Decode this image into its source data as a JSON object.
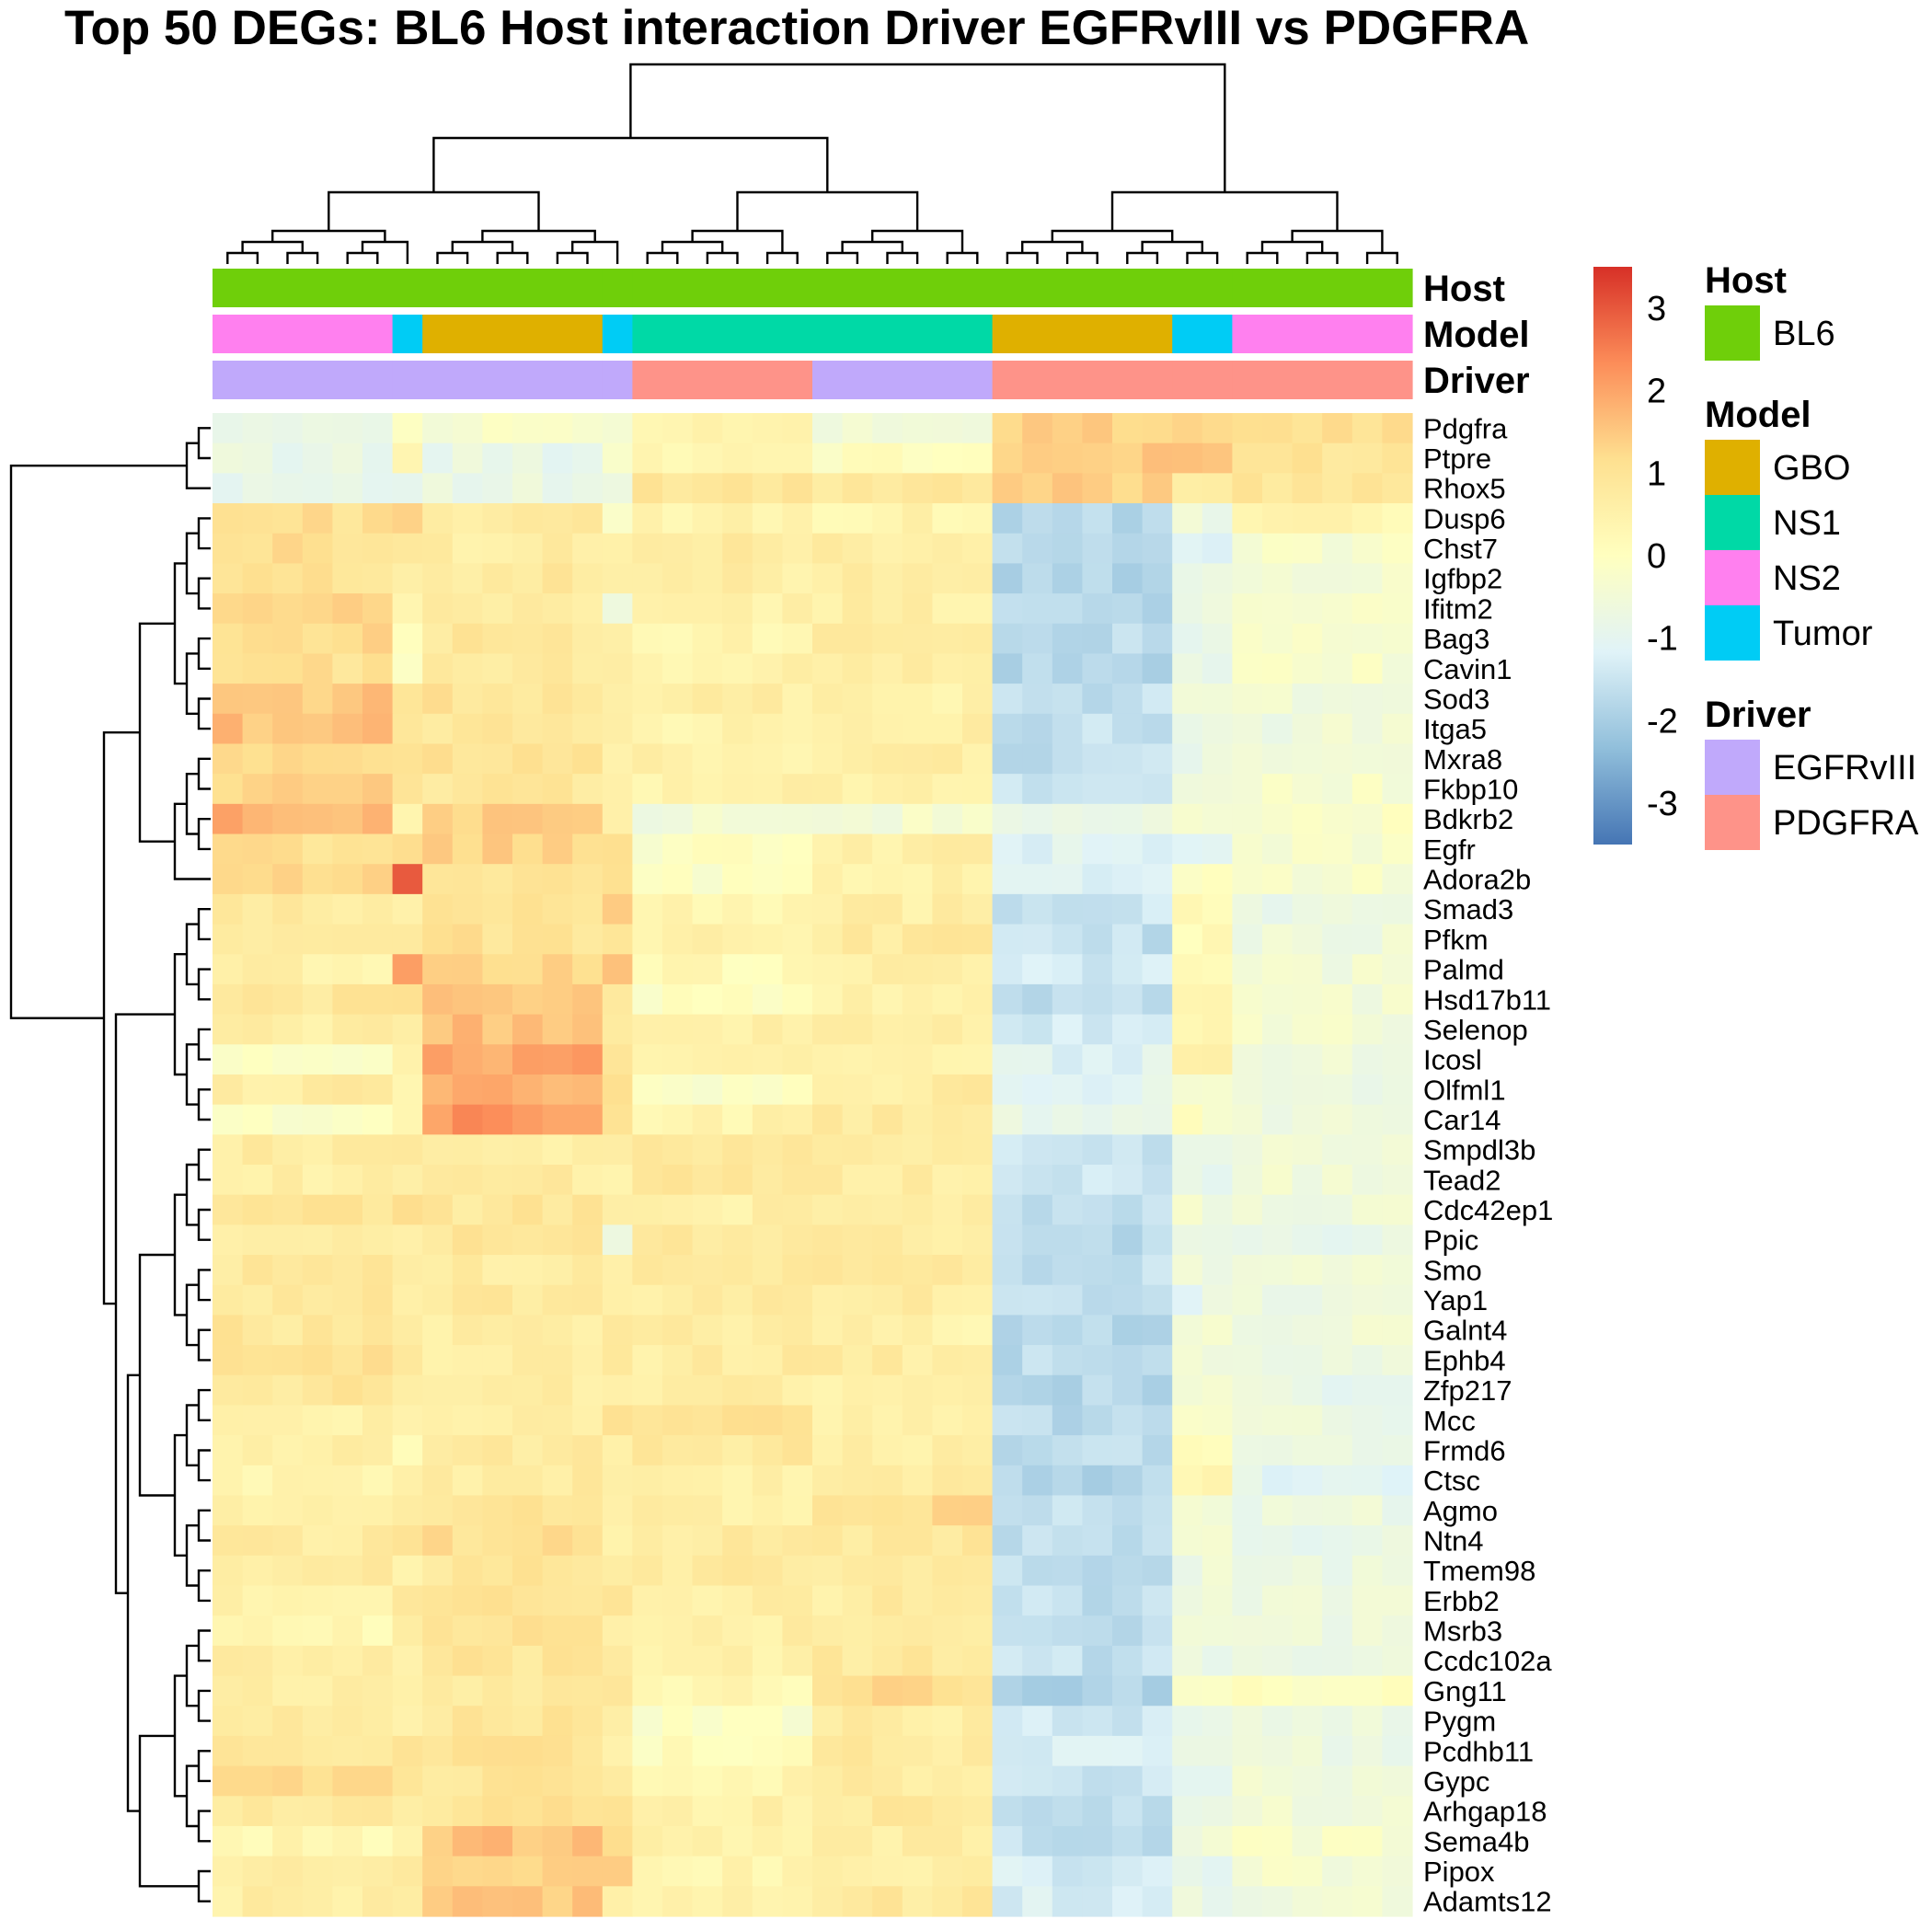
{
  "chart_data": {
    "type": "heatmap",
    "title": "Top 50 DEGs: BL6 Host interaction Driver EGFRvIII vs PDGFRA",
    "genes": [
      "Pdgfra",
      "Ptpre",
      "Rhox5",
      "Dusp6",
      "Chst7",
      "Igfbp2",
      "Ifitm2",
      "Bag3",
      "Cavin1",
      "Sod3",
      "Itga5",
      "Mxra8",
      "Fkbp10",
      "Bdkrb2",
      "Egfr",
      "Adora2b",
      "Smad3",
      "Pfkm",
      "Palmd",
      "Hsd17b11",
      "Selenop",
      "Icosl",
      "Olfml1",
      "Car14",
      "Smpdl3b",
      "Tead2",
      "Cdc42ep1",
      "Ppic",
      "Smo",
      "Yap1",
      "Galnt4",
      "Ephb4",
      "Zfp217",
      "Mcc",
      "Frmd6",
      "Ctsc",
      "Agmo",
      "Ntn4",
      "Tmem98",
      "Erbb2",
      "Msrb3",
      "Ccdc102a",
      "Gng11",
      "Pygm",
      "Pcdhb11",
      "Gypc",
      "Arhgap18",
      "Sema4b",
      "Pipox",
      "Adamts12"
    ],
    "column_groups": [
      {
        "host": "BL6",
        "model": "NS2",
        "driver": "EGFRvIII",
        "n": 6
      },
      {
        "host": "BL6",
        "model": "Tumor",
        "driver": "EGFRvIII",
        "n": 1
      },
      {
        "host": "BL6",
        "model": "GBO",
        "driver": "EGFRvIII",
        "n": 6
      },
      {
        "host": "BL6",
        "model": "Tumor",
        "driver": "EGFRvIII",
        "n": 1
      },
      {
        "host": "BL6",
        "model": "NS1",
        "driver": "PDGFRA",
        "n": 6
      },
      {
        "host": "BL6",
        "model": "NS1",
        "driver": "EGFRvIII",
        "n": 6
      },
      {
        "host": "BL6",
        "model": "GBO",
        "driver": "PDGFRA",
        "n": 6
      },
      {
        "host": "BL6",
        "model": "Tumor",
        "driver": "PDGFRA",
        "n": 2
      },
      {
        "host": "BL6",
        "model": "NS2",
        "driver": "PDGFRA",
        "n": 6
      }
    ],
    "block_means": [
      [
        -0.6,
        -0.3,
        -0.3,
        -0.3,
        0.3,
        -0.5,
        1.3,
        1.2,
        1.1
      ],
      [
        -0.8,
        0.2,
        -0.8,
        -0.3,
        0.4,
        0.0,
        1.4,
        1.5,
        1.0
      ],
      [
        -0.8,
        -0.7,
        -0.8,
        -0.9,
        0.9,
        0.8,
        1.4,
        0.8,
        1.0
      ],
      [
        1.1,
        1.6,
        0.7,
        -0.2,
        0.4,
        0.4,
        -1.8,
        -0.7,
        0.3
      ],
      [
        1.1,
        0.7,
        0.7,
        0.6,
        0.7,
        0.7,
        -1.8,
        -1.2,
        -0.3
      ],
      [
        1.0,
        0.8,
        0.8,
        0.6,
        0.6,
        0.8,
        -1.8,
        -0.9,
        -0.4
      ],
      [
        1.2,
        0.5,
        0.7,
        -0.5,
        0.5,
        0.6,
        -1.7,
        -0.7,
        -0.4
      ],
      [
        1.2,
        0.2,
        0.9,
        0.8,
        0.4,
        0.9,
        -1.7,
        -0.8,
        -0.4
      ],
      [
        1.1,
        -0.2,
        0.7,
        0.7,
        0.5,
        0.7,
        -1.8,
        -0.9,
        -0.3
      ],
      [
        1.5,
        1.0,
        1.0,
        0.8,
        0.6,
        0.5,
        -1.6,
        -0.5,
        -0.5
      ],
      [
        1.6,
        0.8,
        0.9,
        0.8,
        0.4,
        0.7,
        -1.6,
        -0.8,
        -0.6
      ],
      [
        1.1,
        0.9,
        1.0,
        0.7,
        0.5,
        0.6,
        -1.6,
        -0.7,
        -0.5
      ],
      [
        1.3,
        0.9,
        0.9,
        0.7,
        0.5,
        0.6,
        -1.6,
        -0.5,
        -0.3
      ],
      [
        1.8,
        0.2,
        1.4,
        0.7,
        -0.5,
        -0.4,
        -0.8,
        -0.5,
        -0.2
      ],
      [
        1.1,
        1.2,
        1.3,
        1.1,
        -0.1,
        0.6,
        -1.1,
        -0.9,
        -0.3
      ],
      [
        1.3,
        2.8,
        0.9,
        0.9,
        -0.2,
        0.5,
        -1.1,
        0.0,
        -0.3
      ],
      [
        0.7,
        0.6,
        1.0,
        1.6,
        0.4,
        0.6,
        -1.5,
        0.2,
        -0.8
      ],
      [
        0.8,
        0.6,
        1.0,
        1.0,
        0.5,
        0.8,
        -1.6,
        0.2,
        -0.6
      ],
      [
        0.5,
        2.0,
        1.3,
        1.5,
        0.2,
        0.6,
        -1.4,
        0.1,
        -0.5
      ],
      [
        0.9,
        0.9,
        1.4,
        1.0,
        0.0,
        0.5,
        -1.6,
        0.3,
        -0.5
      ],
      [
        0.6,
        0.6,
        1.6,
        1.0,
        0.5,
        0.7,
        -1.4,
        0.4,
        -0.4
      ],
      [
        -0.2,
        0.3,
        2.0,
        0.9,
        0.4,
        0.5,
        -1.1,
        0.6,
        -0.6
      ],
      [
        0.7,
        0.5,
        1.9,
        1.0,
        -0.2,
        0.7,
        -1.0,
        -0.3,
        -0.6
      ],
      [
        -0.1,
        0.5,
        2.2,
        1.0,
        0.4,
        0.7,
        -0.9,
        -0.1,
        -0.7
      ],
      [
        0.7,
        0.8,
        0.6,
        0.6,
        0.9,
        0.7,
        -1.5,
        -0.7,
        -0.6
      ],
      [
        0.6,
        0.8,
        0.7,
        0.6,
        0.9,
        0.7,
        -1.5,
        -0.9,
        -0.5
      ],
      [
        0.9,
        1.0,
        0.9,
        0.7,
        0.6,
        0.6,
        -1.6,
        -0.5,
        -0.6
      ],
      [
        0.8,
        0.4,
        0.9,
        -0.5,
        0.8,
        0.7,
        -1.7,
        -0.9,
        -0.8
      ],
      [
        0.8,
        0.5,
        0.7,
        0.6,
        0.8,
        0.8,
        -1.6,
        -0.7,
        -0.6
      ],
      [
        0.8,
        0.7,
        0.8,
        0.8,
        0.7,
        0.7,
        -1.7,
        -0.9,
        -0.6
      ],
      [
        0.9,
        0.8,
        0.7,
        0.7,
        0.7,
        0.5,
        -1.8,
        -0.5,
        -0.5
      ],
      [
        1.0,
        0.8,
        0.6,
        0.8,
        0.7,
        0.7,
        -1.7,
        -0.5,
        -0.7
      ],
      [
        0.9,
        0.6,
        0.6,
        0.8,
        0.6,
        0.6,
        -1.8,
        -0.5,
        -0.8
      ],
      [
        0.6,
        0.5,
        0.6,
        1.0,
        1.0,
        0.6,
        -1.7,
        -0.3,
        -0.7
      ],
      [
        0.6,
        0.3,
        0.7,
        0.6,
        0.8,
        0.6,
        -1.6,
        0.3,
        -0.6
      ],
      [
        0.4,
        0.7,
        0.7,
        0.7,
        0.6,
        0.6,
        -1.8,
        0.2,
        -1.0
      ],
      [
        0.4,
        0.5,
        0.9,
        0.8,
        0.6,
        1.2,
        -1.6,
        -0.3,
        -0.7
      ],
      [
        0.7,
        0.8,
        1.1,
        0.7,
        0.7,
        0.8,
        -1.6,
        -0.5,
        -0.8
      ],
      [
        0.7,
        0.6,
        0.9,
        0.8,
        0.8,
        0.7,
        -1.6,
        -0.6,
        -0.7
      ],
      [
        0.5,
        0.7,
        1.0,
        0.8,
        0.6,
        0.7,
        -1.6,
        -0.6,
        -0.7
      ],
      [
        0.3,
        0.8,
        1.1,
        0.8,
        0.6,
        0.7,
        -1.6,
        -0.5,
        -0.7
      ],
      [
        0.6,
        0.6,
        0.9,
        0.7,
        0.6,
        0.8,
        -1.6,
        -0.7,
        -0.8
      ],
      [
        0.7,
        0.4,
        0.7,
        0.7,
        0.3,
        1.2,
        -1.9,
        -0.3,
        -0.1
      ],
      [
        0.9,
        0.6,
        0.9,
        0.7,
        -0.2,
        0.7,
        -1.4,
        -0.7,
        -0.6
      ],
      [
        0.9,
        0.8,
        1.0,
        0.7,
        0.1,
        0.8,
        -1.3,
        -0.9,
        -0.7
      ],
      [
        1.1,
        0.8,
        0.9,
        0.7,
        0.4,
        0.7,
        -1.5,
        -0.8,
        -0.5
      ],
      [
        0.8,
        0.8,
        1.0,
        0.9,
        0.5,
        0.8,
        -1.7,
        -0.8,
        -0.5
      ],
      [
        0.3,
        0.5,
        1.6,
        1.0,
        0.5,
        0.7,
        -1.6,
        -0.6,
        -0.3
      ],
      [
        0.7,
        0.6,
        1.3,
        1.4,
        0.4,
        0.7,
        -1.3,
        -0.9,
        -0.4
      ],
      [
        0.6,
        0.7,
        1.5,
        0.8,
        0.5,
        0.8,
        -1.2,
        -0.7,
        -0.5
      ]
    ],
    "color_scale": {
      "min": -3.5,
      "max": 3.5,
      "ticks": [
        3,
        2,
        1,
        0,
        -1,
        -2,
        -3
      ],
      "colors": [
        "#4575b4",
        "#91bfdb",
        "#e0f3f8",
        "#ffffbf",
        "#fee090",
        "#fc8d59",
        "#d73027"
      ]
    },
    "annotation_rows": [
      "Host",
      "Model",
      "Driver"
    ],
    "legends": [
      {
        "title": "Host",
        "items": [
          {
            "label": "BL6",
            "color": "#6fcf0a"
          }
        ]
      },
      {
        "title": "Model",
        "items": [
          {
            "label": "GBO",
            "color": "#dfb000"
          },
          {
            "label": "NS1",
            "color": "#00d9a6"
          },
          {
            "label": "NS2",
            "color": "#ff80ef"
          },
          {
            "label": "Tumor",
            "color": "#00ccf5"
          }
        ]
      },
      {
        "title": "Driver",
        "items": [
          {
            "label": "EGFRvIII",
            "color": "#c0a9fb"
          },
          {
            "label": "PDGFRA",
            "color": "#fe9389"
          }
        ]
      }
    ]
  }
}
